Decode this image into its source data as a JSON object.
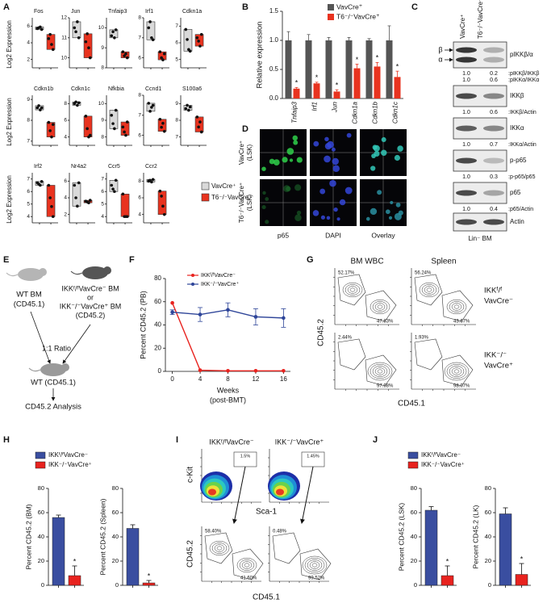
{
  "panel_labels": [
    "A",
    "B",
    "C",
    "D",
    "E",
    "F",
    "G",
    "H",
    "I",
    "J"
  ],
  "chart_data": [
    {
      "type": "box",
      "y_label": "Log2 Expression",
      "legend": [
        {
          "name": "VavCre⁺",
          "color": "#d9d9d9"
        },
        {
          "name": "T6⁻/⁻VavCre⁺",
          "color": "#e8331f"
        }
      ],
      "panels": [
        {
          "title": "Fos",
          "ylim": [
            1,
            7
          ],
          "yticks": [
            2,
            4,
            6
          ],
          "groups": [
            [
              5.7,
              5.8,
              5.9,
              5.6
            ],
            [
              4.5,
              5.0,
              3.8,
              3.2
            ]
          ]
        },
        {
          "title": "Jun",
          "ylim": [
            9.5,
            12
          ],
          "yticks": [
            10,
            11,
            12
          ],
          "groups": [
            [
              11.5,
              11.3,
              11.8,
              11.0
            ],
            [
              10.8,
              11.2,
              10.5,
              10.0
            ]
          ]
        },
        {
          "title": "Tnfaip3",
          "ylim": [
            8,
            10.5
          ],
          "yticks": [
            8,
            9,
            10
          ],
          "groups": [
            [
              9.6,
              9.8,
              9.5,
              9.9
            ],
            [
              8.8,
              8.6,
              8.7,
              8.5
            ]
          ]
        },
        {
          "title": "Irf1",
          "ylim": [
            5.5,
            8
          ],
          "yticks": [
            6,
            7,
            8
          ],
          "groups": [
            [
              7.5,
              7.8,
              7.0,
              6.9
            ],
            [
              6.3,
              6.0,
              5.9,
              6.2
            ]
          ]
        },
        {
          "title": "Cdkn1a",
          "ylim": [
            4.5,
            7.5
          ],
          "yticks": [
            5,
            6,
            7
          ],
          "groups": [
            [
              6.8,
              6.2,
              5.6,
              5.5
            ],
            [
              6.3,
              6.1,
              5.8,
              6.5
            ]
          ]
        },
        {
          "title": "Cdkn1b",
          "ylim": [
            6.8,
            9.2
          ],
          "yticks": [
            7,
            8,
            9
          ],
          "groups": [
            [
              8.6,
              8.7,
              8.5,
              8.6
            ],
            [
              7.9,
              7.5,
              7.2,
              7.8
            ]
          ]
        },
        {
          "title": "Cdkn1c",
          "ylim": [
            3,
            9
          ],
          "yticks": [
            4,
            6,
            8
          ],
          "groups": [
            [
              8.0,
              8.2,
              7.8,
              8.1
            ],
            [
              6.5,
              5.0,
              4.0,
              4.2
            ]
          ]
        },
        {
          "title": "Nfkbia",
          "ylim": [
            7.5,
            10.5
          ],
          "yticks": [
            8,
            9,
            10
          ],
          "groups": [
            [
              9.3,
              8.8,
              8.5,
              9.6
            ],
            [
              8.6,
              8.3,
              8.1,
              8.9
            ]
          ]
        },
        {
          "title": "Ccnd1",
          "ylim": [
            5.5,
            8
          ],
          "yticks": [
            6,
            7,
            8
          ],
          "groups": [
            [
              7.6,
              7.2,
              7.4,
              7.5
            ],
            [
              6.8,
              6.4,
              6.6,
              6.2
            ]
          ]
        },
        {
          "title": "S100a6",
          "ylim": [
            6.5,
            9.5
          ],
          "yticks": [
            7,
            8,
            9
          ],
          "groups": [
            [
              8.7,
              8.9,
              8.6,
              8.8
            ],
            [
              8.2,
              7.6,
              7.9,
              7.3
            ]
          ]
        },
        {
          "title": "Irf2",
          "ylim": [
            3.5,
            7.5
          ],
          "yticks": [
            4,
            5,
            6,
            7
          ],
          "groups": [
            [
              6.7,
              6.6,
              6.5,
              6.8
            ],
            [
              6.5,
              5.5,
              4.8,
              4.0
            ]
          ]
        },
        {
          "title": "Nr4a2",
          "ylim": [
            1,
            7
          ],
          "yticks": [
            2,
            4,
            6
          ],
          "groups": [
            [
              5.5,
              4.0,
              3.0,
              5.8
            ],
            [
              3.6,
              3.5,
              3.4,
              3.7
            ]
          ]
        },
        {
          "title": "Ccr5",
          "ylim": [
            3.5,
            7.5
          ],
          "yticks": [
            4,
            5,
            6,
            7
          ],
          "groups": [
            [
              6.5,
              6.2,
              6.0,
              6.9
            ],
            [
              5.8,
              4.0,
              4.0,
              4.0
            ]
          ]
        },
        {
          "title": "Ccr2",
          "ylim": [
            3,
            9
          ],
          "yticks": [
            4,
            6,
            8
          ],
          "groups": [
            [
              8.0,
              8.1,
              7.9,
              8.2
            ],
            [
              6.8,
              6.2,
              5.0,
              4.0
            ]
          ]
        }
      ]
    },
    {
      "type": "bar",
      "y_label": "Relative expression",
      "categories": [
        "Tnfaip3",
        "Irf1",
        "Jun",
        "Cdkn1a",
        "Cdkn1b",
        "Cdkn1c"
      ],
      "ylim": [
        0,
        1.5
      ],
      "yticks": [
        {
          "value": 0,
          "label": "0.0"
        },
        {
          "value": 0.5,
          "label": "0.5"
        },
        {
          "value": 1,
          "label": "1.0"
        },
        {
          "value": 1.5,
          "label": "1.5"
        }
      ],
      "series": [
        {
          "name": "VavCre⁺",
          "color": "#555555",
          "values": [
            1,
            1,
            1,
            1,
            1,
            1
          ],
          "errors": [
            0.15,
            0.1,
            0.05,
            0.05,
            0.03,
            0.25
          ]
        },
        {
          "name": "T6⁻/⁻VavCre⁺",
          "color": "#e8331f",
          "values": [
            0.17,
            0.26,
            0.12,
            0.52,
            0.55,
            0.37
          ],
          "errors": [
            0.02,
            0.02,
            0.03,
            0.07,
            0.07,
            0.1
          ]
        }
      ],
      "significance": [
        "*",
        "*",
        "*",
        "*",
        "*",
        "*"
      ]
    },
    {
      "type": "line",
      "y_label": "Percent CD45.2 (PB)",
      "x_label": "Weeks",
      "x_label_note": "(post-BMT)",
      "x": [
        0,
        4,
        8,
        12,
        16
      ],
      "xlim": [
        -1,
        17
      ],
      "xticks": [
        0,
        4,
        8,
        12,
        16
      ],
      "ylim": [
        0,
        80
      ],
      "yticks": [
        0,
        20,
        40,
        60,
        80
      ],
      "series": [
        {
          "name": "IKKᶠ/ᶠVavCre⁻",
          "color": "#e8231f",
          "values": [
            59,
            1,
            0.5,
            0.5,
            0.5
          ]
        },
        {
          "name": "IKK⁻/⁻VavCre⁺",
          "color": "#2e4599",
          "values": [
            51,
            49,
            53,
            47,
            46
          ],
          "errors": [
            2,
            6,
            6,
            7,
            8
          ]
        }
      ]
    },
    {
      "type": "bar",
      "series": [
        {
          "name": "IKKᶠ/ᶠVavCre⁻",
          "color": "#3a4ea0"
        },
        {
          "name": "IKK⁻/⁻VavCre⁺",
          "color": "#e8231f"
        }
      ],
      "panels": [
        {
          "y_label": "Percent CD45.2 (BM)",
          "ylim": [
            0,
            80
          ],
          "yticks": [
            0,
            20,
            40,
            60,
            80
          ],
          "values": [
            56,
            8
          ],
          "errors": [
            2,
            8
          ],
          "significance": "*"
        },
        {
          "y_label": "Percent CD45.2 (Spleen)",
          "ylim": [
            0,
            80
          ],
          "yticks": [
            0,
            20,
            40,
            60,
            80
          ],
          "values": [
            47,
            2
          ],
          "errors": [
            3,
            2
          ],
          "significance": "*"
        }
      ]
    },
    {
      "type": "bar",
      "series": [
        {
          "name": "IKKᶠ/ᶠVavCre⁻",
          "color": "#3a4ea0"
        },
        {
          "name": "IKK⁻/⁻VavCre⁺",
          "color": "#e8231f"
        }
      ],
      "panels": [
        {
          "y_label": "Percent CD45.2 (LSK)",
          "ylim": [
            0,
            80
          ],
          "yticks": [
            0,
            20,
            40,
            60,
            80
          ],
          "values": [
            62,
            8
          ],
          "errors": [
            3,
            8
          ],
          "significance": "*"
        },
        {
          "y_label": "Percent CD45.2 (LK)",
          "ylim": [
            0,
            80
          ],
          "yticks": [
            0,
            20,
            40,
            60,
            80
          ],
          "values": [
            59,
            9
          ],
          "errors": [
            5,
            9
          ],
          "significance": "*"
        }
      ]
    }
  ],
  "blot": {
    "lanes": [
      "VavCre⁺",
      "T6⁻/⁻VavCre⁺"
    ],
    "arrows": [
      "β",
      "α"
    ],
    "rows": [
      {
        "label": "pIKKβ/α",
        "quant": [
          {
            "values": [
              "1.0",
              "0.2"
            ],
            "label": ":pIKKβ/IKKβ"
          },
          {
            "values": [
              "1.0",
              "0.6"
            ],
            "label": ":pIKKα/IKKα"
          }
        ]
      },
      {
        "label": "IKKβ",
        "quant": [
          {
            "values": [
              "1.0",
              "0.6"
            ],
            "label": ":IKKβ/Actin"
          }
        ]
      },
      {
        "label": "IKKα",
        "quant": [
          {
            "values": [
              "1.0",
              "0.7"
            ],
            "label": ":IKKα/Actin"
          }
        ]
      },
      {
        "label": "p-p65",
        "quant": [
          {
            "values": [
              "1.0",
              "0.3"
            ],
            "label": ":p-p65/p65"
          }
        ]
      },
      {
        "label": "p65",
        "quant": [
          {
            "values": [
              "1.0",
              "0.4"
            ],
            "label": ":p65/Actin"
          }
        ]
      },
      {
        "label": "Actin",
        "quant": []
      }
    ],
    "footer": "Lin⁻ BM"
  },
  "microscopy": {
    "row_labels": [
      [
        "VavCre⁺",
        "(LSK)"
      ],
      [
        "T6⁻/⁻VavCre⁺",
        "(LSK)"
      ]
    ],
    "column_labels": [
      "p65",
      "DAPI",
      "Overlay"
    ]
  },
  "diagram": {
    "donor_wt": [
      "WT BM",
      "(CD45.1)"
    ],
    "donor_test": [
      "IKKᶠ/ᶠVavCre⁻ BM",
      "or",
      "IKK⁻/⁻VavCre⁺ BM",
      "(CD45.2)"
    ],
    "ratio": "1:1 Ratio",
    "recipient": "WT (CD45.1)",
    "analysis": "CD45.2 Analysis"
  },
  "flow_g": {
    "columns": [
      "BM WBC",
      "Spleen"
    ],
    "rows": [
      [
        "IKKᶠ/ᶠ",
        "VavCre⁻"
      ],
      [
        "IKK⁻/⁻",
        "VavCre⁺"
      ]
    ],
    "gates": [
      [
        [
          "52.17%",
          "47.83%"
        ],
        [
          "56.24%",
          "43.67%"
        ]
      ],
      [
        [
          "2.44%",
          "97.98%"
        ],
        [
          "1.93%",
          "98.07%"
        ]
      ]
    ],
    "y_label": "CD45.2",
    "x_label": "CD45.1"
  },
  "flow_i": {
    "columns": [
      "IKKᶠ/ᶠVavCre⁻",
      "IKK⁻/⁻VavCre⁺"
    ],
    "top_gates": [
      "1.5%",
      "1.45%"
    ],
    "bottom_gates": [
      [
        "58.40%",
        "41.60%"
      ],
      [
        "0.48%",
        "99.52%"
      ]
    ],
    "top_y_label": "c-Kit",
    "top_x_label": "Sca-1",
    "bottom_y_label": "CD45.2",
    "bottom_x_label": "CD45.1"
  }
}
